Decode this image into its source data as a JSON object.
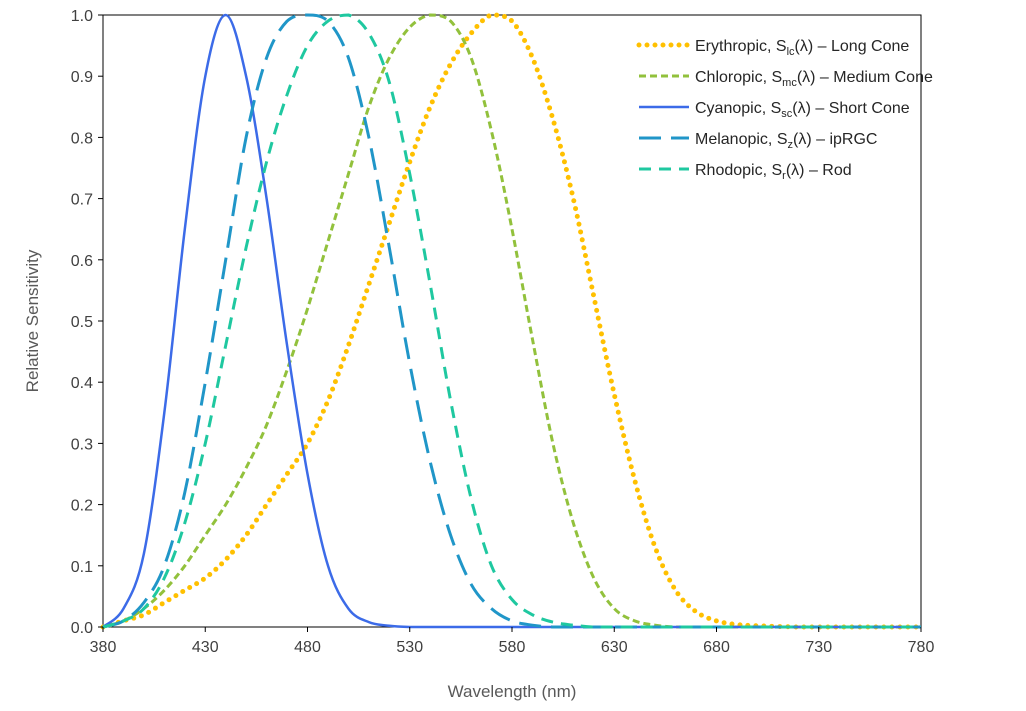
{
  "chart_data": {
    "type": "line",
    "title": "",
    "xlabel": "Wavelength (nm)",
    "ylabel": "Relative Sensitivity",
    "xlim": [
      380,
      780
    ],
    "ylim": [
      0,
      1
    ],
    "x_ticks": [
      "380",
      "430",
      "480",
      "530",
      "580",
      "630",
      "680",
      "730",
      "780"
    ],
    "y_ticks": [
      "0.0",
      "0.1",
      "0.2",
      "0.3",
      "0.4",
      "0.5",
      "0.6",
      "0.7",
      "0.8",
      "0.9",
      "1.0"
    ],
    "grid": false,
    "legend_position": "top-right",
    "x": [
      380,
      390,
      400,
      410,
      420,
      430,
      440,
      450,
      460,
      470,
      480,
      490,
      500,
      510,
      520,
      530,
      540,
      550,
      560,
      570,
      580,
      590,
      600,
      610,
      620,
      630,
      640,
      650,
      660,
      670,
      680,
      690,
      700,
      720,
      740,
      760,
      780
    ],
    "series": [
      {
        "key": "erythropic",
        "legend": {
          "prefix": "Erythropic, S",
          "sub": "lc",
          "suffix": "(λ) – Long Cone"
        },
        "color": "#FFC000",
        "style": "dotted",
        "values": [
          0.0,
          0.01,
          0.02,
          0.04,
          0.06,
          0.08,
          0.11,
          0.15,
          0.2,
          0.25,
          0.3,
          0.37,
          0.46,
          0.56,
          0.66,
          0.76,
          0.85,
          0.92,
          0.97,
          1.0,
          0.99,
          0.93,
          0.83,
          0.7,
          0.54,
          0.38,
          0.24,
          0.13,
          0.06,
          0.025,
          0.01,
          0.004,
          0.002,
          0.0,
          0.0,
          0.0,
          0.0
        ]
      },
      {
        "key": "chloropic",
        "legend": {
          "prefix": "Chloropic, S",
          "sub": "mc",
          "suffix": "(λ) – Medium Cone"
        },
        "color": "#92C13C",
        "style": "short-dash",
        "values": [
          0.0,
          0.01,
          0.03,
          0.06,
          0.1,
          0.15,
          0.2,
          0.26,
          0.33,
          0.42,
          0.52,
          0.63,
          0.74,
          0.85,
          0.93,
          0.98,
          1.0,
          0.99,
          0.93,
          0.81,
          0.65,
          0.47,
          0.3,
          0.17,
          0.08,
          0.03,
          0.01,
          0.003,
          0.0,
          0.0,
          0.0,
          0.0,
          0.0,
          0.0,
          0.0,
          0.0,
          0.0
        ]
      },
      {
        "key": "cyanopic",
        "legend": {
          "prefix": "Cyanopic, S",
          "sub": "sc",
          "suffix": "(λ) – Short Cone"
        },
        "color": "#3C6BE8",
        "style": "solid",
        "values": [
          0.0,
          0.03,
          0.12,
          0.35,
          0.65,
          0.9,
          1.0,
          0.9,
          0.7,
          0.46,
          0.25,
          0.1,
          0.03,
          0.008,
          0.002,
          0.0,
          0.0,
          0.0,
          0.0,
          0.0,
          0.0,
          0.0,
          0.0,
          0.0,
          0.0,
          0.0,
          0.0,
          0.0,
          0.0,
          0.0,
          0.0,
          0.0,
          0.0,
          0.0,
          0.0,
          0.0,
          0.0
        ]
      },
      {
        "key": "melanopic",
        "legend": {
          "prefix": "Melanopic, S",
          "sub": "z",
          "suffix": "(λ) – ipRGC"
        },
        "color": "#2096C8",
        "style": "long-dash",
        "values": [
          0.0,
          0.01,
          0.04,
          0.1,
          0.22,
          0.4,
          0.6,
          0.8,
          0.93,
          0.99,
          1.0,
          0.99,
          0.93,
          0.8,
          0.62,
          0.43,
          0.27,
          0.15,
          0.07,
          0.03,
          0.01,
          0.003,
          0.0,
          0.0,
          0.0,
          0.0,
          0.0,
          0.0,
          0.0,
          0.0,
          0.0,
          0.0,
          0.0,
          0.0,
          0.0,
          0.0,
          0.0
        ]
      },
      {
        "key": "rhodopic",
        "legend": {
          "prefix": "Rhodopic, S",
          "sub": "r",
          "suffix": "(λ) – Rod"
        },
        "color": "#1FC8A0",
        "style": "medium-dash",
        "values": [
          0.0,
          0.01,
          0.03,
          0.08,
          0.17,
          0.3,
          0.46,
          0.62,
          0.76,
          0.87,
          0.95,
          0.99,
          1.0,
          0.97,
          0.89,
          0.74,
          0.56,
          0.37,
          0.21,
          0.1,
          0.045,
          0.02,
          0.008,
          0.003,
          0.0,
          0.0,
          0.0,
          0.0,
          0.0,
          0.0,
          0.0,
          0.0,
          0.0,
          0.0,
          0.0,
          0.0,
          0.0
        ]
      }
    ]
  }
}
